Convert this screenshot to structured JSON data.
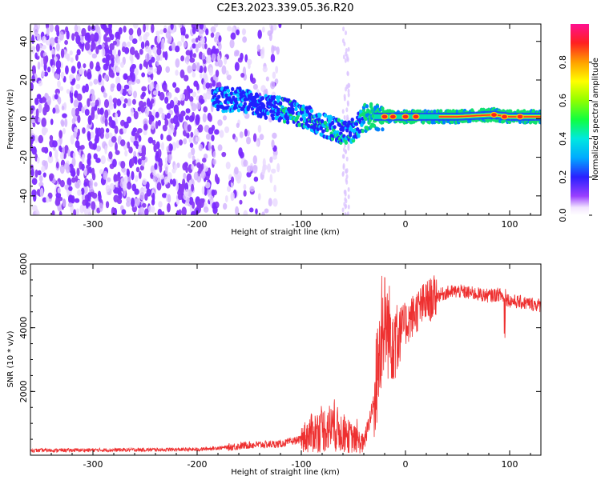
{
  "title": "C2E3.2023.339.05.36.R20",
  "chart_data": [
    {
      "type": "heatmap",
      "xlabel": "Height of straight line (km)",
      "ylabel": "Frequency (Hz)",
      "xlim": [
        -360,
        130
      ],
      "ylim": [
        -50,
        49
      ],
      "xticks": [
        -300,
        -200,
        -100,
        0,
        100
      ],
      "yticks": [
        -40,
        -20,
        0,
        20,
        40
      ],
      "colorbar": {
        "label": "Normalized spectral amplitude",
        "range": [
          0,
          1
        ],
        "ticks": [
          "0.0",
          "0.2",
          "0.4",
          "0.6",
          "0.8"
        ]
      },
      "ridge": {
        "x": [
          -180,
          -160,
          -140,
          -120,
          -100,
          -80,
          -60,
          -50,
          -40,
          -30,
          -20,
          0,
          50,
          85,
          100,
          130
        ],
        "y": [
          10,
          10,
          7,
          5,
          2,
          -3,
          -7,
          -6,
          0,
          1,
          1,
          1,
          1,
          2,
          1,
          1
        ]
      }
    },
    {
      "type": "line",
      "xlabel": "Height of straight line (km)",
      "ylabel": "SNR (10 * v/v)",
      "xlim": [
        -360,
        130
      ],
      "ylim": [
        0,
        6000
      ],
      "xticks": [
        -300,
        -200,
        -100,
        0,
        100
      ],
      "yticks": [
        2000,
        4000,
        6000
      ],
      "color": "#ee3030",
      "series": [
        {
          "x": [
            -360,
            -300,
            -250,
            -200,
            -170,
            -150,
            -120,
            -100,
            -90,
            -70,
            -55,
            -40,
            -30,
            -25,
            -20,
            -15,
            -10,
            0,
            10,
            20,
            30,
            40,
            50,
            60,
            70,
            80,
            90,
            95,
            100,
            110,
            130
          ],
          "y": [
            150,
            160,
            170,
            180,
            250,
            320,
            350,
            500,
            700,
            900,
            600,
            350,
            1700,
            3200,
            4200,
            3800,
            3900,
            4100,
            4500,
            4800,
            5000,
            5100,
            5150,
            5100,
            5050,
            5000,
            5050,
            4950,
            4850,
            4800,
            4700
          ]
        }
      ]
    }
  ]
}
